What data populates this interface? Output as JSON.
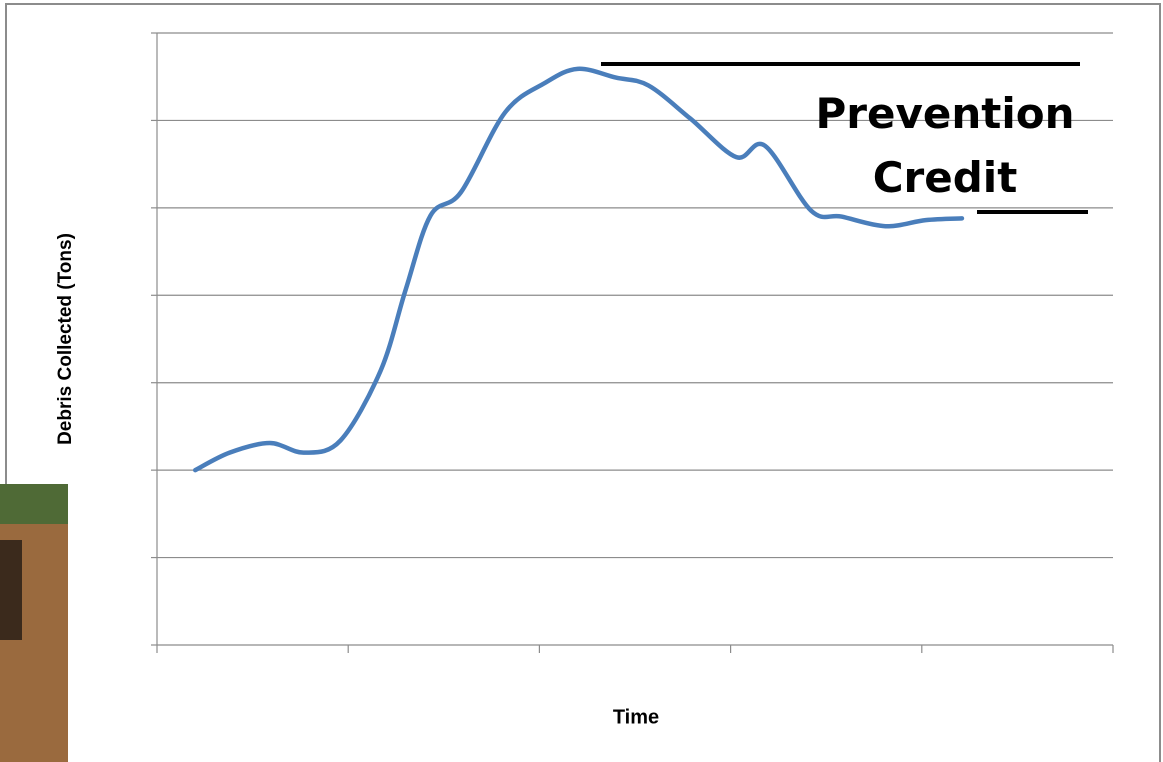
{
  "chart_data": {
    "type": "line",
    "y_label": "Debris Collected (Tons)",
    "x_label": "Time",
    "annotation": "Prevention Credit",
    "xlim": [
      0,
      5
    ],
    "xticks": [
      0,
      1,
      2,
      3,
      4,
      5
    ],
    "ylim": [
      0,
      7
    ],
    "yticks": [
      0,
      1,
      2,
      3,
      4,
      5,
      6,
      7
    ],
    "grid": true,
    "x": [
      0.2,
      0.38,
      0.59,
      0.77,
      0.96,
      1.17,
      1.3,
      1.43,
      1.59,
      1.82,
      2.03,
      2.2,
      2.4,
      2.57,
      2.79,
      3.03,
      3.18,
      3.42,
      3.58,
      3.81,
      4.02,
      4.21
    ],
    "series": [
      {
        "color": "#4a7ebb",
        "values": [
          2.0,
          2.2,
          2.31,
          2.2,
          2.34,
          3.14,
          4.06,
          4.91,
          5.18,
          6.09,
          6.43,
          6.59,
          6.49,
          6.4,
          6.02,
          5.58,
          5.71,
          4.97,
          4.9,
          4.79,
          4.86,
          4.88
        ]
      }
    ]
  }
}
